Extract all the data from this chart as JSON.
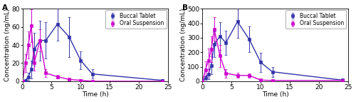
{
  "panel_A": {
    "label": "A",
    "xlabel": "Time (h)",
    "ylabel": "Concentration (ng/mL)",
    "xlim": [
      0,
      25
    ],
    "ylim": [
      0,
      80
    ],
    "yticks": [
      0,
      20,
      40,
      60,
      80
    ],
    "xticks": [
      0,
      5,
      10,
      15,
      20,
      25
    ],
    "buccal_x": [
      0,
      0.5,
      1,
      1.5,
      2,
      3,
      4,
      6,
      8,
      10,
      12,
      24
    ],
    "buccal_y": [
      0,
      1,
      5,
      13,
      35,
      45,
      45,
      63,
      49,
      23,
      8,
      1
    ],
    "buccal_yerr": [
      0,
      1,
      4,
      10,
      18,
      22,
      20,
      18,
      22,
      10,
      5,
      1
    ],
    "oral_x": [
      0,
      0.5,
      1,
      1.5,
      2,
      3,
      4,
      6,
      8,
      10,
      12,
      24
    ],
    "oral_y": [
      0,
      20,
      40,
      61,
      20,
      45,
      9,
      5,
      2,
      1,
      0,
      0
    ],
    "oral_yerr": [
      0,
      10,
      15,
      18,
      8,
      12,
      4,
      2,
      1,
      1,
      0,
      0
    ],
    "buccal_color": "#3333aa",
    "oral_color": "#cc00cc",
    "legend_labels": [
      "Buccal Tablet",
      "Oral Suspension"
    ]
  },
  "panel_B": {
    "label": "B",
    "xlabel": "Time (h)",
    "ylabel": "Concentration (ng/mL)",
    "xlim": [
      0,
      25
    ],
    "ylim": [
      0,
      500
    ],
    "yticks": [
      0,
      100,
      200,
      300,
      400,
      500
    ],
    "xticks": [
      0,
      5,
      10,
      15,
      20,
      25
    ],
    "buccal_x": [
      0,
      0.5,
      1,
      1.5,
      2,
      3,
      4,
      6,
      8,
      10,
      12,
      24
    ],
    "buccal_y": [
      0,
      25,
      50,
      110,
      255,
      310,
      265,
      410,
      290,
      130,
      65,
      8
    ],
    "buccal_yerr": [
      0,
      15,
      35,
      60,
      90,
      95,
      85,
      110,
      90,
      65,
      35,
      5
    ],
    "oral_x": [
      0,
      0.5,
      1,
      1.5,
      2,
      3,
      4,
      6,
      8,
      10,
      12,
      24
    ],
    "oral_y": [
      0,
      80,
      140,
      220,
      360,
      175,
      55,
      40,
      40,
      8,
      5,
      5
    ],
    "oral_yerr": [
      0,
      55,
      85,
      90,
      80,
      75,
      30,
      18,
      15,
      5,
      4,
      3
    ],
    "buccal_color": "#3333aa",
    "oral_color": "#cc00cc",
    "legend_labels": [
      "Buccal Tablet",
      "Oral Suspension"
    ]
  },
  "figure_bg": "#ffffff",
  "font_size": 6.5,
  "marker_size": 2.8,
  "line_width": 1.0,
  "capsize": 1.5,
  "elinewidth": 0.7
}
